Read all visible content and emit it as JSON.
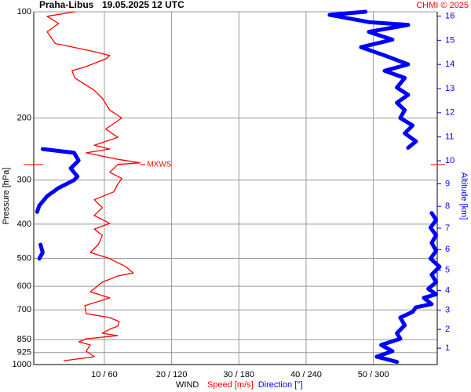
{
  "chart_data": {
    "type": "line",
    "title": "Praha-Libus",
    "subtitle": "19.05.2025 12 UTC",
    "source": "CHMI © 2025",
    "ylabel": "Pressure [hPa]",
    "y2label": "Altitude [km]",
    "legend_title": "WIND",
    "ylim": [
      1000,
      100
    ],
    "log_y": true,
    "yticks": [
      100,
      200,
      300,
      400,
      500,
      600,
      700,
      850,
      925,
      1000
    ],
    "xlim": [
      -0.5,
      59.5
    ],
    "x2lim": [
      -3,
      357
    ],
    "xticks": [
      {
        "value": 10,
        "label": "10 / 60"
      },
      {
        "value": 20,
        "label": "20 / 120"
      },
      {
        "value": 30,
        "label": "30 / 180"
      },
      {
        "value": 40,
        "label": "40 / 240"
      },
      {
        "value": 50,
        "label": "50 / 300"
      }
    ],
    "y2lim": [
      0.11,
      16.2
    ],
    "y2ticks": [
      1,
      2,
      3,
      4,
      5,
      6,
      7,
      8,
      9,
      10,
      11,
      12,
      13,
      14,
      15,
      16
    ],
    "grid": true,
    "annotation": {
      "text": "MXWS",
      "y": 271,
      "x": 15.3,
      "color": "#ff0000"
    },
    "series": [
      {
        "name": "Speed [m/s]",
        "color": "#ff0000",
        "axis": "x",
        "y": [
          975,
          950,
          916,
          880,
          862,
          845,
          828,
          815,
          794,
          778,
          755,
          736,
          717,
          681,
          647,
          622,
          584,
          561,
          550,
          528,
          501,
          481,
          457,
          430,
          413,
          398,
          378,
          359,
          341,
          324,
          308,
          297,
          285,
          271,
          268,
          262,
          251,
          245,
          239,
          227,
          215,
          200,
          190,
          176,
          167,
          154,
          147,
          143,
          136,
          133,
          129,
          123,
          114,
          108,
          103,
          100
        ],
        "values": [
          4.0,
          8.5,
          7.3,
          7.9,
          6.2,
          7.3,
          12.0,
          9.7,
          10.8,
          12.0,
          12.2,
          10.8,
          7.3,
          7.1,
          10.8,
          7.9,
          9.7,
          12.0,
          14.3,
          13.2,
          10.8,
          7.9,
          9.1,
          9.7,
          8.5,
          10.8,
          8.5,
          9.7,
          8.5,
          11.4,
          12.0,
          12.6,
          10.8,
          12.0,
          15.3,
          12.0,
          7.3,
          10.8,
          8.5,
          12.0,
          10.2,
          12.6,
          10.8,
          9.7,
          8.5,
          5.6,
          5.2,
          7.3,
          10.2,
          10.8,
          7.9,
          2.7,
          1.5,
          3.2,
          1.5,
          5.6
        ]
      },
      {
        "name": "Direction [°]",
        "color": "#0000ff",
        "axis": "x2",
        "y": [
          983,
          950,
          916,
          880,
          845,
          815,
          774,
          736,
          709,
          688,
          674,
          647,
          632,
          610,
          584,
          556,
          528,
          501,
          476,
          452,
          430,
          409,
          389,
          372,
          null,
          501,
          481,
          457,
          null,
          369,
          354,
          333,
          316,
          300,
          293,
          278,
          264,
          251,
          245,
          null,
          243,
          233,
          221,
          210,
          200,
          190,
          181,
          172,
          164,
          154,
          147,
          141,
          133,
          126,
          120,
          114,
          109,
          107,
          102,
          100
        ],
        "values": [
          321,
          303,
          317,
          307,
          324,
          321,
          328,
          324,
          335,
          338,
          352,
          345,
          356,
          349,
          356,
          352,
          359,
          351,
          356,
          352,
          356,
          351,
          356,
          352,
          null,
          2,
          5,
          3,
          null,
          0,
          2,
          9,
          19,
          33,
          36,
          30,
          37,
          33,
          5,
          null,
          331,
          338,
          328,
          335,
          324,
          328,
          321,
          331,
          321,
          328,
          310,
          331,
          310,
          289,
          317,
          296,
          331,
          296,
          261,
          293
        ]
      }
    ]
  }
}
